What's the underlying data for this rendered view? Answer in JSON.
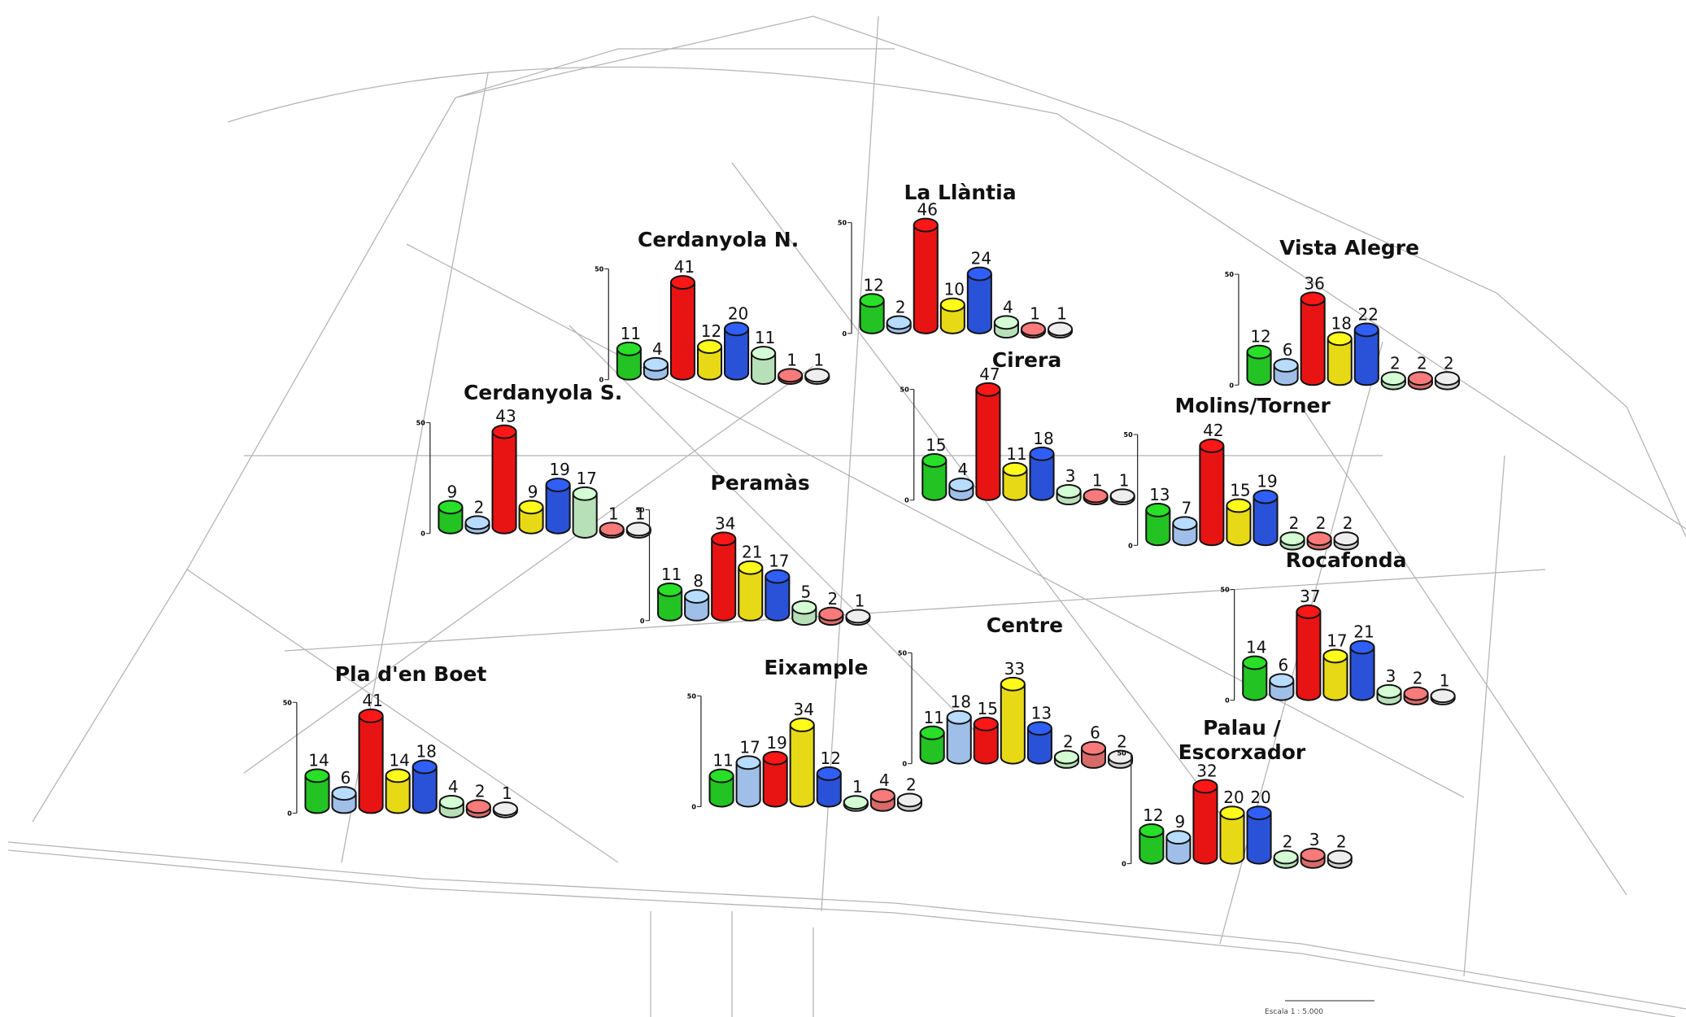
{
  "chart_data": [
    {
      "type": "bar",
      "title": "Cerdanyola N.",
      "values": [
        11,
        4,
        41,
        12,
        20,
        11,
        1,
        1
      ],
      "colors": [
        "#22c322",
        "#9fbfe8",
        "#e81414",
        "#e8d916",
        "#2a52d8",
        "#b8e0b8",
        "#d86a6a",
        "#cfcfcf"
      ],
      "ylim": [
        0,
        50
      ],
      "yticks": [
        0,
        50
      ]
    },
    {
      "type": "bar",
      "title": "La Llàntia",
      "values": [
        12,
        2,
        46,
        10,
        24,
        4,
        1,
        1
      ],
      "colors": [
        "#22c322",
        "#9fbfe8",
        "#e81414",
        "#e8d916",
        "#2a52d8",
        "#b8e0b8",
        "#d86a6a",
        "#cfcfcf"
      ],
      "ylim": [
        0,
        50
      ],
      "yticks": [
        0,
        50
      ]
    },
    {
      "type": "bar",
      "title": "Vista Alegre",
      "values": [
        12,
        6,
        36,
        18,
        22,
        2,
        2,
        2
      ],
      "colors": [
        "#22c322",
        "#9fbfe8",
        "#e81414",
        "#e8d916",
        "#2a52d8",
        "#b8e0b8",
        "#d86a6a",
        "#cfcfcf"
      ],
      "ylim": [
        0,
        50
      ],
      "yticks": [
        0,
        50
      ]
    },
    {
      "type": "bar",
      "title": "Cerdanyola S.",
      "values": [
        9,
        2,
        43,
        9,
        19,
        17,
        1,
        1
      ],
      "colors": [
        "#22c322",
        "#9fbfe8",
        "#e81414",
        "#e8d916",
        "#2a52d8",
        "#b8e0b8",
        "#d86a6a",
        "#cfcfcf"
      ],
      "ylim": [
        0,
        50
      ],
      "yticks": [
        0,
        50
      ]
    },
    {
      "type": "bar",
      "title": "Cirera",
      "values": [
        15,
        4,
        47,
        11,
        18,
        3,
        1,
        1
      ],
      "colors": [
        "#22c322",
        "#9fbfe8",
        "#e81414",
        "#e8d916",
        "#2a52d8",
        "#b8e0b8",
        "#d86a6a",
        "#cfcfcf"
      ],
      "ylim": [
        0,
        50
      ],
      "yticks": [
        0,
        50
      ]
    },
    {
      "type": "bar",
      "title": "Molins/Torner",
      "values": [
        13,
        7,
        42,
        15,
        19,
        2,
        2,
        2
      ],
      "colors": [
        "#22c322",
        "#9fbfe8",
        "#e81414",
        "#e8d916",
        "#2a52d8",
        "#b8e0b8",
        "#d86a6a",
        "#cfcfcf"
      ],
      "ylim": [
        0,
        50
      ],
      "yticks": [
        0,
        50
      ]
    },
    {
      "type": "bar",
      "title": "Peramàs",
      "values": [
        11,
        8,
        34,
        21,
        17,
        5,
        2,
        1
      ],
      "colors": [
        "#22c322",
        "#9fbfe8",
        "#e81414",
        "#e8d916",
        "#2a52d8",
        "#b8e0b8",
        "#d86a6a",
        "#cfcfcf"
      ],
      "ylim": [
        0,
        50
      ],
      "yticks": [
        0,
        50
      ]
    },
    {
      "type": "bar",
      "title": "Rocafonda",
      "values": [
        14,
        6,
        37,
        17,
        21,
        3,
        2,
        1
      ],
      "colors": [
        "#22c322",
        "#9fbfe8",
        "#e81414",
        "#e8d916",
        "#2a52d8",
        "#b8e0b8",
        "#d86a6a",
        "#cfcfcf"
      ],
      "ylim": [
        0,
        50
      ],
      "yticks": [
        0,
        50
      ]
    },
    {
      "type": "bar",
      "title": "Centre",
      "values": [
        11,
        18,
        15,
        33,
        13,
        2,
        6,
        2
      ],
      "colors": [
        "#22c322",
        "#9fbfe8",
        "#e81414",
        "#e8d916",
        "#2a52d8",
        "#b8e0b8",
        "#d86a6a",
        "#cfcfcf"
      ],
      "ylim": [
        0,
        50
      ],
      "yticks": [
        0,
        50
      ]
    },
    {
      "type": "bar",
      "title": "Eixample",
      "values": [
        11,
        17,
        19,
        34,
        12,
        1,
        4,
        2
      ],
      "colors": [
        "#22c322",
        "#9fbfe8",
        "#e81414",
        "#e8d916",
        "#2a52d8",
        "#b8e0b8",
        "#d86a6a",
        "#cfcfcf"
      ],
      "ylim": [
        0,
        50
      ],
      "yticks": [
        0,
        50
      ]
    },
    {
      "type": "bar",
      "title": "Pla d'en Boet",
      "values": [
        14,
        6,
        41,
        14,
        18,
        4,
        2,
        1
      ],
      "colors": [
        "#22c322",
        "#9fbfe8",
        "#e81414",
        "#e8d916",
        "#2a52d8",
        "#b8e0b8",
        "#d86a6a",
        "#cfcfcf"
      ],
      "ylim": [
        0,
        50
      ],
      "yticks": [
        0,
        50
      ]
    },
    {
      "type": "bar",
      "title": "Palau /\nEscorxador",
      "values": [
        12,
        9,
        32,
        20,
        20,
        2,
        3,
        2
      ],
      "colors": [
        "#22c322",
        "#9fbfe8",
        "#e81414",
        "#e8d916",
        "#2a52d8",
        "#b8e0b8",
        "#d86a6a",
        "#cfcfcf"
      ],
      "ylim": [
        0,
        50
      ],
      "yticks": [
        0,
        50
      ]
    }
  ],
  "scale_label": "Escala 1 : 5.000"
}
